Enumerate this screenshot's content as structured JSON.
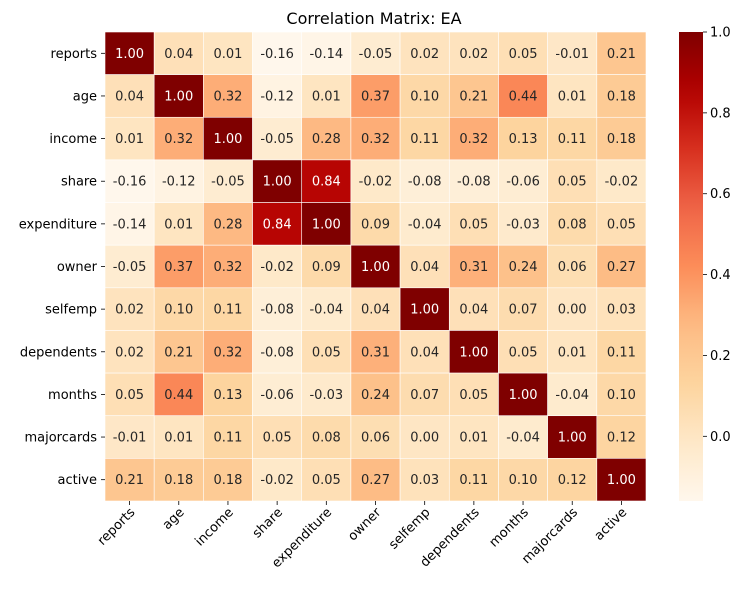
{
  "chart_data": {
    "type": "heatmap",
    "title": "Correlation Matrix: EA",
    "xlabel": "",
    "ylabel": "",
    "labels": [
      "reports",
      "age",
      "income",
      "share",
      "expenditure",
      "owner",
      "selfemp",
      "dependents",
      "months",
      "majorcards",
      "active"
    ],
    "matrix": [
      [
        1.0,
        0.04,
        0.01,
        -0.16,
        -0.14,
        -0.05,
        0.02,
        0.02,
        0.05,
        -0.01,
        0.21
      ],
      [
        0.04,
        1.0,
        0.32,
        -0.12,
        0.01,
        0.37,
        0.1,
        0.21,
        0.44,
        0.01,
        0.18
      ],
      [
        0.01,
        0.32,
        1.0,
        -0.05,
        0.28,
        0.32,
        0.11,
        0.32,
        0.13,
        0.11,
        0.18
      ],
      [
        -0.16,
        -0.12,
        -0.05,
        1.0,
        0.84,
        -0.02,
        -0.08,
        -0.08,
        -0.06,
        0.05,
        -0.02
      ],
      [
        -0.14,
        0.01,
        0.28,
        0.84,
        1.0,
        0.09,
        -0.04,
        0.05,
        -0.03,
        0.08,
        0.05
      ],
      [
        -0.05,
        0.37,
        0.32,
        -0.02,
        0.09,
        1.0,
        0.04,
        0.31,
        0.24,
        0.06,
        0.27
      ],
      [
        0.02,
        0.1,
        0.11,
        -0.08,
        -0.04,
        0.04,
        1.0,
        0.04,
        0.07,
        0.0,
        0.03
      ],
      [
        0.02,
        0.21,
        0.32,
        -0.08,
        0.05,
        0.31,
        0.04,
        1.0,
        0.05,
        0.01,
        0.11
      ],
      [
        0.05,
        0.44,
        0.13,
        -0.06,
        -0.03,
        0.24,
        0.07,
        0.05,
        1.0,
        -0.04,
        0.1
      ],
      [
        -0.01,
        0.01,
        0.11,
        0.05,
        0.08,
        0.06,
        0.0,
        0.01,
        -0.04,
        1.0,
        0.12
      ],
      [
        0.21,
        0.18,
        0.18,
        -0.02,
        0.05,
        0.27,
        0.03,
        0.11,
        0.1,
        0.12,
        1.0
      ]
    ],
    "value_format": "2 decimals",
    "colormap": "OrRd",
    "color_range": [
      -0.16,
      1.0
    ],
    "colorbar_ticks": [
      "0.0",
      "0.2",
      "0.4",
      "0.6",
      "0.8",
      "1.0"
    ],
    "colorbar_tick_values": [
      0.0,
      0.2,
      0.4,
      0.6,
      0.8,
      1.0
    ],
    "legend_placement": "right",
    "grid": false
  }
}
